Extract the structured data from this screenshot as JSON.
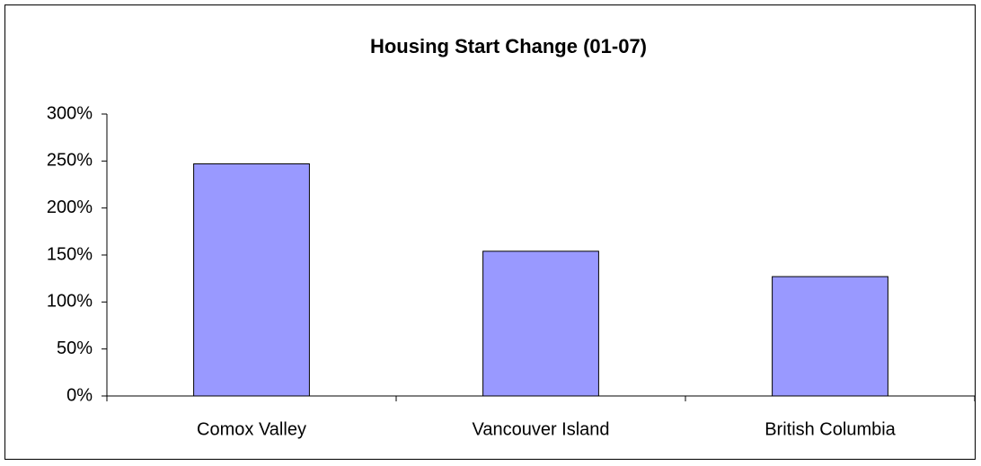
{
  "chart_data": {
    "type": "bar",
    "title": "Housing Start Change (01-07)",
    "categories": [
      "Comox Valley",
      "Vancouver Island",
      "British Columbia"
    ],
    "values": [
      247,
      154,
      127
    ],
    "color": "#9999ff",
    "ylim": [
      0,
      300
    ],
    "yticks": [
      {
        "value": 0,
        "label": "0%"
      },
      {
        "value": 50,
        "label": "50%"
      },
      {
        "value": 100,
        "label": "100%"
      },
      {
        "value": 150,
        "label": "150%"
      },
      {
        "value": 200,
        "label": "200%"
      },
      {
        "value": 250,
        "label": "250%"
      },
      {
        "value": 300,
        "label": "300%"
      }
    ],
    "grid": false
  }
}
